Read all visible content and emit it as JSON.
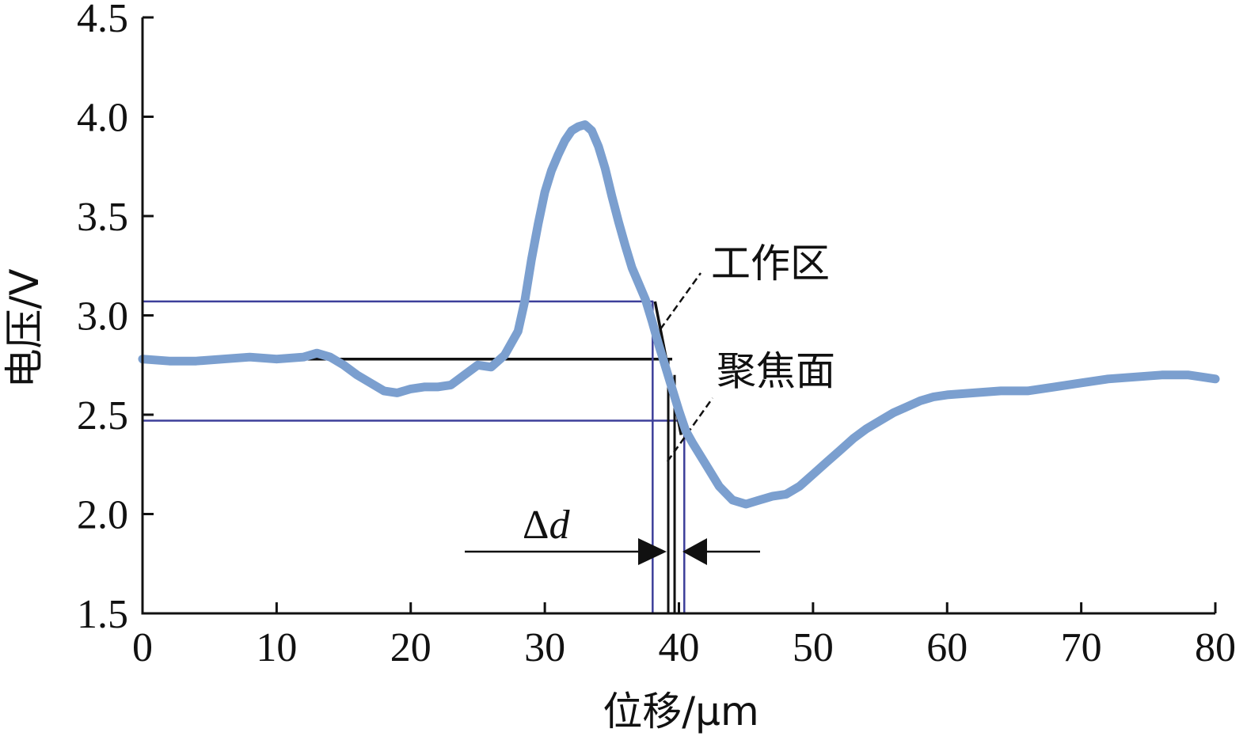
{
  "chart_data": {
    "type": "line",
    "xlabel": "位移/μm",
    "ylabel": "电压/V",
    "xlim": [
      0,
      80
    ],
    "ylim": [
      1.5,
      4.5
    ],
    "xticks": [
      "0",
      "10",
      "20",
      "30",
      "40",
      "50",
      "60",
      "70",
      "80"
    ],
    "yticks": [
      "1.5",
      "2.0",
      "2.5",
      "3.0",
      "3.5",
      "4.0",
      "4.5"
    ],
    "grid": false,
    "series": [
      {
        "color": "#7b9fcf",
        "x": [
          0,
          2,
          4,
          6,
          8,
          10,
          12,
          13,
          14,
          15,
          16,
          17,
          18,
          19,
          20,
          21,
          22,
          23,
          24,
          25,
          26,
          27,
          28,
          28.5,
          29,
          29.5,
          30,
          30.5,
          31,
          31.5,
          32,
          32.5,
          33,
          33.5,
          34,
          34.5,
          35,
          35.5,
          36,
          36.5,
          37,
          37.5,
          38,
          38.5,
          39,
          39.5,
          40,
          40.5,
          41,
          42,
          43,
          44,
          45,
          46,
          47,
          48,
          49,
          50,
          51,
          52,
          53,
          54,
          55,
          56,
          57,
          58,
          59,
          60,
          62,
          64,
          66,
          68,
          70,
          72,
          74,
          76,
          78,
          80
        ],
        "y": [
          2.78,
          2.77,
          2.77,
          2.78,
          2.79,
          2.78,
          2.79,
          2.81,
          2.79,
          2.75,
          2.7,
          2.66,
          2.62,
          2.61,
          2.63,
          2.64,
          2.64,
          2.65,
          2.7,
          2.75,
          2.74,
          2.8,
          2.92,
          3.07,
          3.28,
          3.46,
          3.62,
          3.73,
          3.81,
          3.88,
          3.93,
          3.95,
          3.96,
          3.93,
          3.85,
          3.74,
          3.6,
          3.47,
          3.35,
          3.24,
          3.16,
          3.08,
          2.97,
          2.85,
          2.74,
          2.63,
          2.52,
          2.42,
          2.36,
          2.25,
          2.14,
          2.07,
          2.05,
          2.07,
          2.09,
          2.1,
          2.14,
          2.2,
          2.26,
          2.32,
          2.38,
          2.43,
          2.47,
          2.51,
          2.54,
          2.57,
          2.59,
          2.6,
          2.61,
          2.62,
          2.62,
          2.64,
          2.66,
          2.68,
          2.69,
          2.7,
          2.7,
          2.68
        ]
      }
    ],
    "annotations": {
      "work_zone_label": "工作区",
      "focus_plane_label": "聚焦面",
      "delta_label": "Δd",
      "upper_level_y": 3.07,
      "focus_level_y": 2.78,
      "lower_level_y": 2.47,
      "upper_cross_x": 38.1,
      "focus_cross_x": 39.5,
      "lower_cross_x": 40.4
    }
  }
}
